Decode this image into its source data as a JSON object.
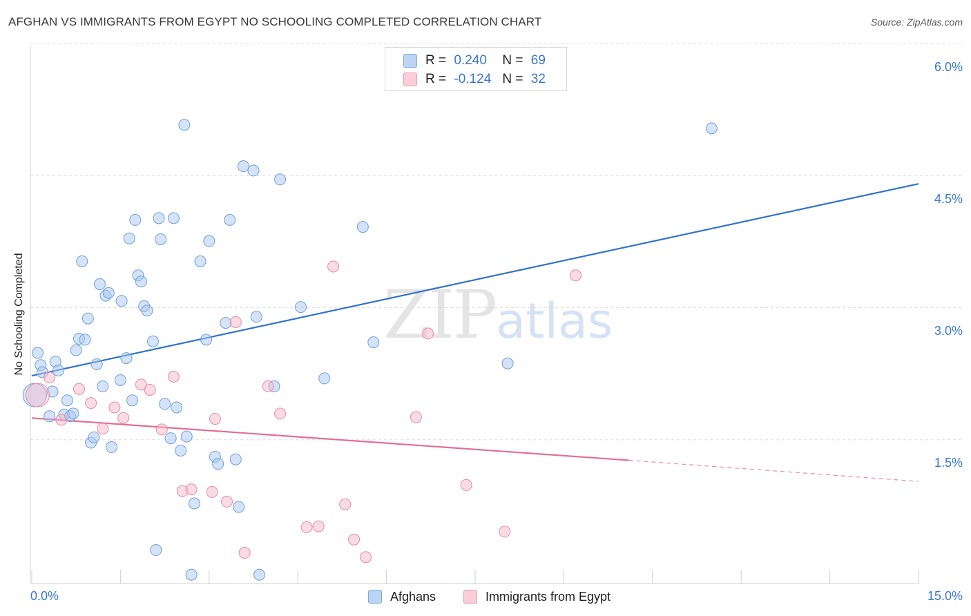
{
  "header": {
    "title": "AFGHAN VS IMMIGRANTS FROM EGYPT NO SCHOOLING COMPLETED CORRELATION CHART",
    "source": "Source: ZipAtlas.com"
  },
  "watermark": {
    "zip": "ZIP",
    "atlas": "atlas"
  },
  "legend": {
    "rows": [
      {
        "r_label": "R =",
        "r_value": "0.240",
        "n_label": "N =",
        "n_value": "69",
        "color": "#a9c8ef"
      },
      {
        "r_label": "R =",
        "r_value": "-0.124",
        "n_label": "N =",
        "n_value": "32",
        "color": "#f4b8c9"
      }
    ]
  },
  "bottom_legend": {
    "afghans": "Afghans",
    "egypt": "Immigrants from Egypt"
  },
  "axis": {
    "ylabel": "No Schooling Completed",
    "x_min_label": "0.0%",
    "x_max_label": "15.0%",
    "y_ticks": [
      "6.0%",
      "4.5%",
      "3.0%",
      "1.5%"
    ]
  },
  "chart_data": {
    "type": "scatter",
    "title": "AFGHAN VS IMMIGRANTS FROM EGYPT NO SCHOOLING COMPLETED CORRELATION CHART",
    "xlabel": "",
    "ylabel": "No Schooling Completed",
    "xlim": [
      0,
      15
    ],
    "ylim": [
      0,
      6.15
    ],
    "grid": true,
    "legend_position": "top-center",
    "series": [
      {
        "name": "Afghans",
        "color": "#a9c8ef",
        "stroke": "#6f9fd8",
        "trend_color": "#2f72d0",
        "trend": {
          "x": [
            0,
            15
          ],
          "y": [
            2.36,
            4.54
          ]
        },
        "points": [
          [
            0.1,
            2.62
          ],
          [
            0.15,
            2.48
          ],
          [
            0.18,
            2.4
          ],
          [
            0.3,
            1.9
          ],
          [
            0.35,
            2.18
          ],
          [
            0.4,
            2.52
          ],
          [
            0.45,
            2.42
          ],
          [
            0.55,
            1.92
          ],
          [
            0.6,
            2.08
          ],
          [
            0.65,
            1.9
          ],
          [
            0.7,
            1.93
          ],
          [
            0.75,
            2.65
          ],
          [
            0.8,
            2.78
          ],
          [
            0.85,
            3.66
          ],
          [
            0.9,
            2.77
          ],
          [
            0.95,
            3.01
          ],
          [
            1.0,
            1.6
          ],
          [
            1.05,
            1.66
          ],
          [
            1.1,
            2.49
          ],
          [
            1.15,
            3.4
          ],
          [
            1.2,
            2.24
          ],
          [
            1.25,
            3.27
          ],
          [
            1.3,
            3.3
          ],
          [
            1.35,
            1.55
          ],
          [
            1.5,
            2.31
          ],
          [
            1.52,
            3.21
          ],
          [
            1.6,
            2.56
          ],
          [
            1.65,
            3.92
          ],
          [
            1.7,
            2.08
          ],
          [
            1.75,
            4.13
          ],
          [
            1.8,
            3.5
          ],
          [
            1.85,
            3.43
          ],
          [
            1.9,
            3.15
          ],
          [
            1.95,
            3.1
          ],
          [
            2.05,
            2.75
          ],
          [
            2.1,
            0.38
          ],
          [
            2.15,
            4.15
          ],
          [
            2.18,
            3.91
          ],
          [
            2.25,
            2.04
          ],
          [
            2.35,
            1.65
          ],
          [
            2.4,
            4.15
          ],
          [
            2.45,
            2.0
          ],
          [
            2.52,
            1.51
          ],
          [
            2.58,
            5.21
          ],
          [
            2.62,
            1.67
          ],
          [
            2.7,
            0.1
          ],
          [
            2.75,
            0.91
          ],
          [
            2.85,
            3.66
          ],
          [
            2.95,
            2.77
          ],
          [
            3.0,
            3.89
          ],
          [
            3.1,
            1.44
          ],
          [
            3.15,
            1.36
          ],
          [
            3.28,
            2.96
          ],
          [
            3.35,
            4.13
          ],
          [
            3.45,
            1.41
          ],
          [
            3.5,
            0.87
          ],
          [
            3.58,
            4.74
          ],
          [
            3.75,
            4.69
          ],
          [
            3.8,
            3.03
          ],
          [
            3.85,
            0.1
          ],
          [
            4.1,
            2.24
          ],
          [
            4.2,
            4.59
          ],
          [
            4.55,
            3.14
          ],
          [
            4.95,
            2.33
          ],
          [
            5.6,
            4.05
          ],
          [
            5.78,
            2.74
          ],
          [
            8.05,
            2.5
          ],
          [
            11.5,
            5.17
          ],
          [
            0.05,
            2.14
          ]
        ]
      },
      {
        "name": "Immigrants from Egypt",
        "color": "#f4b8c9",
        "stroke": "#e88aa6",
        "trend_color": "#e56d93",
        "trend": {
          "x": [
            0,
            10.1
          ],
          "y": [
            1.88,
            1.4
          ]
        },
        "trend_dashed": {
          "x": [
            10.1,
            15
          ],
          "y": [
            1.4,
            1.16
          ]
        },
        "points": [
          [
            0.1,
            2.14
          ],
          [
            0.3,
            2.34
          ],
          [
            0.5,
            1.86
          ],
          [
            0.8,
            2.21
          ],
          [
            1.0,
            2.05
          ],
          [
            1.2,
            1.76
          ],
          [
            1.4,
            2.0
          ],
          [
            1.55,
            1.88
          ],
          [
            1.85,
            2.26
          ],
          [
            2.0,
            2.2
          ],
          [
            2.2,
            1.75
          ],
          [
            2.4,
            2.35
          ],
          [
            2.55,
            1.05
          ],
          [
            2.7,
            1.07
          ],
          [
            3.05,
            1.04
          ],
          [
            3.1,
            1.87
          ],
          [
            3.3,
            0.93
          ],
          [
            3.45,
            2.97
          ],
          [
            3.6,
            0.35
          ],
          [
            4.0,
            2.24
          ],
          [
            4.2,
            1.93
          ],
          [
            4.65,
            0.64
          ],
          [
            4.85,
            0.65
          ],
          [
            5.1,
            3.6
          ],
          [
            5.3,
            0.9
          ],
          [
            5.45,
            0.5
          ],
          [
            5.65,
            0.3
          ],
          [
            6.5,
            1.89
          ],
          [
            6.7,
            2.84
          ],
          [
            7.35,
            1.12
          ],
          [
            8.0,
            0.59
          ],
          [
            9.2,
            3.5
          ]
        ]
      }
    ]
  }
}
